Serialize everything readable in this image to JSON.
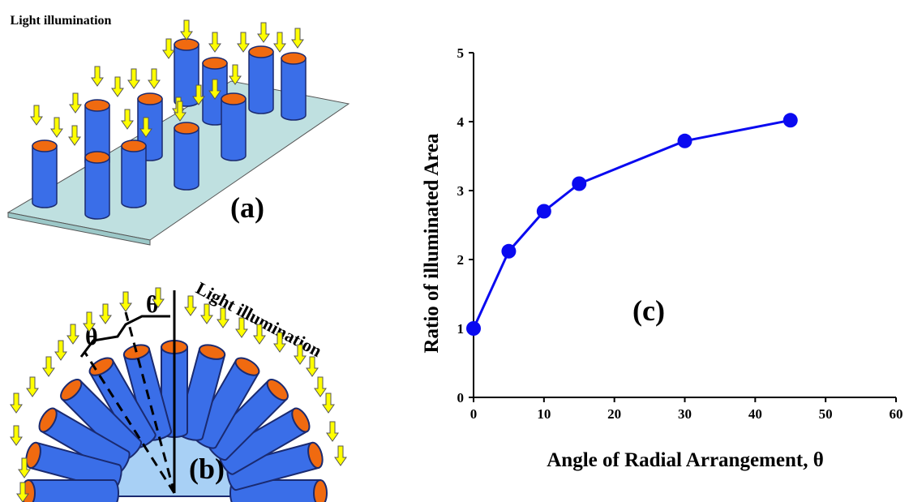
{
  "panel_a": {
    "label": "Light illumination",
    "tag": "(a)"
  },
  "panel_b": {
    "label": "Light illumination",
    "angle_labels": [
      "θ",
      "θ"
    ],
    "tag": "(b)"
  },
  "chart_data": {
    "type": "line",
    "annotation": "(c)",
    "x_label": "Angle of Radial Arrangement, θ",
    "y_label": "Ratio of illuminated Area",
    "x": [
      0,
      5,
      10,
      15,
      30,
      45
    ],
    "values": [
      1,
      2.12,
      2.7,
      3.1,
      3.72,
      4.02
    ],
    "color": "#0a0af0",
    "xlim": [
      0,
      60
    ],
    "xticks": [
      0,
      10,
      20,
      30,
      40,
      50,
      60
    ],
    "ylim": [
      0,
      5
    ],
    "yticks": [
      0,
      1,
      2,
      3,
      4,
      5
    ]
  }
}
